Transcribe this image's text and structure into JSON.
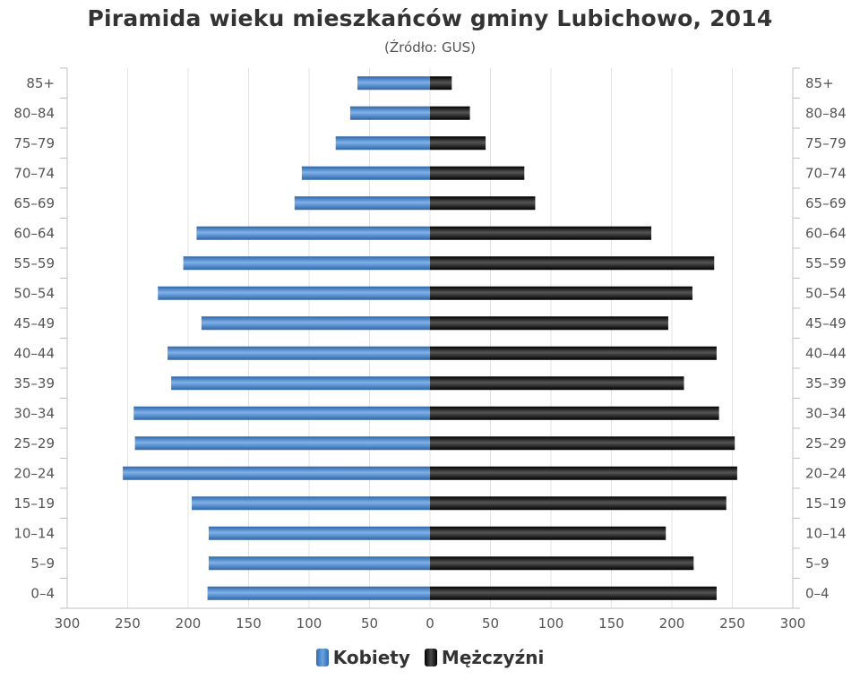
{
  "chart_data": {
    "type": "bar",
    "title": "Piramida wieku mieszkańców gminy Lubichowo, 2014",
    "subtitle": "(Źródło: GUS)",
    "categories": [
      "85+",
      "80–84",
      "75–79",
      "70–74",
      "65–69",
      "60–64",
      "55–59",
      "50–54",
      "45–49",
      "40–44",
      "35–39",
      "30–34",
      "25–29",
      "20–24",
      "15–19",
      "10–14",
      "5–9",
      "0–4"
    ],
    "series": [
      {
        "name": "Kobiety",
        "color": "#4a87cc",
        "values": [
          60,
          66,
          78,
          106,
          112,
          193,
          204,
          225,
          189,
          217,
          214,
          245,
          244,
          254,
          197,
          183,
          183,
          184
        ]
      },
      {
        "name": "Mężczyźni",
        "color": "#1a1a1a",
        "values": [
          18,
          33,
          46,
          78,
          87,
          183,
          235,
          217,
          197,
          237,
          210,
          239,
          252,
          254,
          245,
          195,
          218,
          237
        ]
      }
    ],
    "xticks": [
      "300",
      "250",
      "200",
      "150",
      "100",
      "50",
      "0",
      "50",
      "100",
      "150",
      "200",
      "250",
      "300"
    ],
    "xlim": [
      -300,
      300
    ],
    "grid": true,
    "legend_position": "bottom"
  }
}
